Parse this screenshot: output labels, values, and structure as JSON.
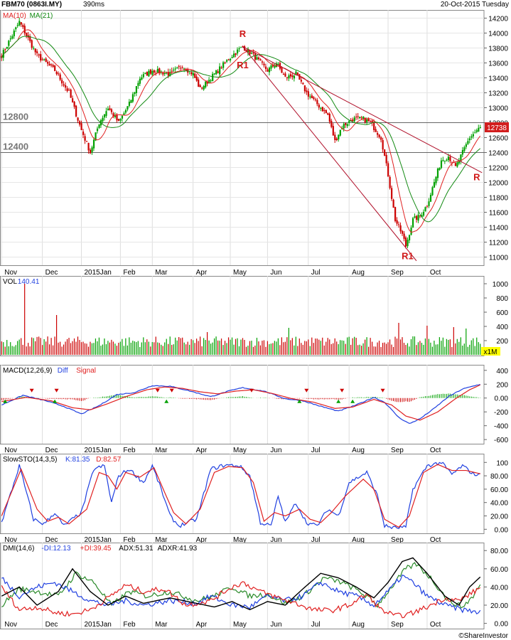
{
  "header": {
    "symbol": "FBM70 (0863I.MY)",
    "timing": "390ms",
    "date": "20-Oct-2015 Tuesday"
  },
  "footer": {
    "copyright": "©ShareInvestor"
  },
  "colors": {
    "up": "#00a000",
    "down": "#cc0000",
    "ma10": "#e02020",
    "ma21": "#138a13",
    "diff": "#1f3fe0",
    "signal": "#e02020",
    "trend": "#b0102a",
    "adx": "#000000",
    "minus_di": "#1f3fe0",
    "plus_di": "#e02020",
    "adxr": "#2a8a2a",
    "last_price_box": "#d21d1d",
    "volume_unit_box": "#ffff00"
  },
  "chart_data": [
    {
      "type": "candlestick",
      "panel": "price",
      "legend": [
        "MA(10)",
        "MA(21)"
      ],
      "x_ticks": [
        "Nov",
        "Dec",
        "2015Jan",
        "Feb",
        "Mar",
        "Apr",
        "May",
        "Jun",
        "Jul",
        "Aug",
        "Sep",
        "Oct"
      ],
      "ylim": [
        10900,
        14300
      ],
      "y_ticks": [
        11000,
        11200,
        11400,
        11600,
        11800,
        12000,
        12200,
        12400,
        12600,
        12800,
        13000,
        13200,
        13400,
        13600,
        13800,
        14000,
        14200
      ],
      "reference_lines": [
        {
          "label": "12800",
          "value": 12800
        },
        {
          "label": "12400",
          "value": 12400
        }
      ],
      "last_price": "12738",
      "close_anchors": [
        [
          0,
          13700
        ],
        [
          10,
          14150
        ],
        [
          20,
          13700
        ],
        [
          30,
          13500
        ],
        [
          38,
          13200
        ],
        [
          45,
          12700
        ],
        [
          50,
          12400
        ],
        [
          55,
          12800
        ],
        [
          60,
          13000
        ],
        [
          66,
          12800
        ],
        [
          72,
          13050
        ],
        [
          78,
          13400
        ],
        [
          85,
          13500
        ],
        [
          95,
          13450
        ],
        [
          102,
          13560
        ],
        [
          108,
          13450
        ],
        [
          112,
          13250
        ],
        [
          118,
          13400
        ],
        [
          124,
          13550
        ],
        [
          130,
          13700
        ],
        [
          136,
          13820
        ],
        [
          142,
          13700
        ],
        [
          146,
          13600
        ],
        [
          150,
          13500
        ],
        [
          155,
          13600
        ],
        [
          160,
          13400
        ],
        [
          166,
          13450
        ],
        [
          172,
          13200
        ],
        [
          178,
          13050
        ],
        [
          184,
          12900
        ],
        [
          188,
          12550
        ],
        [
          192,
          12750
        ],
        [
          198,
          12850
        ],
        [
          204,
          12850
        ],
        [
          208,
          12800
        ],
        [
          214,
          12600
        ],
        [
          218,
          12100
        ],
        [
          222,
          11500
        ],
        [
          226,
          11300
        ],
        [
          228,
          11150
        ],
        [
          232,
          11500
        ],
        [
          236,
          11550
        ],
        [
          240,
          11700
        ],
        [
          244,
          12000
        ],
        [
          248,
          12300
        ],
        [
          252,
          12350
        ],
        [
          256,
          12200
        ],
        [
          260,
          12400
        ],
        [
          264,
          12600
        ],
        [
          270,
          12738
        ]
      ],
      "annotations": [
        {
          "text": "R",
          "x": 136,
          "y": 13950
        },
        {
          "text": "R1",
          "x": 136,
          "y": 13530
        },
        {
          "text": "R",
          "x": 268,
          "y": 12030
        },
        {
          "text": "R1",
          "x": 229,
          "y": 10970
        }
      ],
      "trendlines": [
        {
          "from": [
            136,
            13820
          ],
          "to": [
            271,
            12130
          ]
        },
        {
          "from": [
            136,
            13820
          ],
          "to": [
            234,
            10950
          ]
        }
      ]
    },
    {
      "type": "bar",
      "panel": "volume",
      "title": "VOL",
      "last_value": "140.41",
      "unit": "x1M",
      "ylim": [
        0,
        1100
      ],
      "y_ticks": [
        200,
        400,
        600,
        800,
        1000
      ],
      "spikes": [
        [
          13,
          1000
        ],
        [
          31,
          560
        ],
        [
          116,
          320
        ],
        [
          162,
          380
        ],
        [
          224,
          450
        ],
        [
          240,
          410
        ],
        [
          255,
          390
        ],
        [
          262,
          370
        ]
      ]
    },
    {
      "type": "line",
      "panel": "macd",
      "title": "MACD(12,26,9)",
      "series": [
        {
          "name": "Diff"
        },
        {
          "name": "Signal"
        }
      ],
      "ylim": [
        -650,
        470
      ],
      "y_ticks": [
        400,
        200,
        0,
        -200,
        -400,
        -600
      ],
      "diff_anchors": [
        [
          0,
          -100
        ],
        [
          12,
          40
        ],
        [
          25,
          -40
        ],
        [
          35,
          -120
        ],
        [
          45,
          -230
        ],
        [
          55,
          -110
        ],
        [
          65,
          50
        ],
        [
          75,
          80
        ],
        [
          85,
          180
        ],
        [
          95,
          170
        ],
        [
          105,
          110
        ],
        [
          118,
          20
        ],
        [
          128,
          100
        ],
        [
          136,
          150
        ],
        [
          148,
          100
        ],
        [
          160,
          -10
        ],
        [
          170,
          -40
        ],
        [
          180,
          -120
        ],
        [
          190,
          -190
        ],
        [
          200,
          -100
        ],
        [
          210,
          10
        ],
        [
          216,
          -60
        ],
        [
          224,
          -280
        ],
        [
          230,
          -370
        ],
        [
          236,
          -300
        ],
        [
          244,
          -150
        ],
        [
          252,
          20
        ],
        [
          260,
          130
        ],
        [
          270,
          200
        ]
      ],
      "signal_anchors": [
        [
          0,
          -50
        ],
        [
          14,
          10
        ],
        [
          28,
          -40
        ],
        [
          40,
          -140
        ],
        [
          50,
          -170
        ],
        [
          60,
          -80
        ],
        [
          70,
          20
        ],
        [
          82,
          120
        ],
        [
          92,
          160
        ],
        [
          102,
          140
        ],
        [
          112,
          90
        ],
        [
          122,
          60
        ],
        [
          132,
          100
        ],
        [
          142,
          120
        ],
        [
          152,
          70
        ],
        [
          164,
          -10
        ],
        [
          176,
          -60
        ],
        [
          188,
          -150
        ],
        [
          198,
          -130
        ],
        [
          210,
          -20
        ],
        [
          220,
          -100
        ],
        [
          228,
          -260
        ],
        [
          236,
          -320
        ],
        [
          246,
          -200
        ],
        [
          256,
          -10
        ],
        [
          264,
          120
        ],
        [
          270,
          190
        ]
      ],
      "down_arrows": [
        17,
        31,
        88,
        96,
        141,
        172,
        192,
        215
      ],
      "up_arrows": [
        2,
        30,
        93,
        168,
        190,
        198
      ]
    },
    {
      "type": "line",
      "panel": "stochastic",
      "title": "SlowSTO(14,3,5)",
      "series": [
        {
          "name": "K:81.35"
        },
        {
          "name": "D:82.57"
        }
      ],
      "ylim": [
        -5,
        112
      ],
      "y_ticks": [
        100,
        80,
        60,
        40,
        20,
        0
      ],
      "k_anchors": [
        [
          0,
          10
        ],
        [
          10,
          95
        ],
        [
          18,
          15
        ],
        [
          24,
          8
        ],
        [
          30,
          25
        ],
        [
          35,
          5
        ],
        [
          45,
          25
        ],
        [
          52,
          90
        ],
        [
          58,
          95
        ],
        [
          62,
          40
        ],
        [
          66,
          80
        ],
        [
          72,
          90
        ],
        [
          80,
          70
        ],
        [
          85,
          95
        ],
        [
          90,
          60
        ],
        [
          95,
          20
        ],
        [
          100,
          5
        ],
        [
          110,
          15
        ],
        [
          118,
          90
        ],
        [
          126,
          96
        ],
        [
          134,
          95
        ],
        [
          140,
          80
        ],
        [
          146,
          10
        ],
        [
          152,
          5
        ],
        [
          156,
          50
        ],
        [
          160,
          10
        ],
        [
          166,
          40
        ],
        [
          172,
          10
        ],
        [
          178,
          5
        ],
        [
          184,
          30
        ],
        [
          190,
          20
        ],
        [
          196,
          70
        ],
        [
          206,
          85
        ],
        [
          212,
          50
        ],
        [
          216,
          5
        ],
        [
          222,
          2
        ],
        [
          228,
          3
        ],
        [
          232,
          60
        ],
        [
          240,
          95
        ],
        [
          248,
          100
        ],
        [
          254,
          82
        ],
        [
          260,
          95
        ],
        [
          266,
          83
        ],
        [
          270,
          81
        ]
      ],
      "d_anchors": [
        [
          0,
          20
        ],
        [
          11,
          90
        ],
        [
          20,
          30
        ],
        [
          26,
          12
        ],
        [
          32,
          18
        ],
        [
          38,
          8
        ],
        [
          48,
          30
        ],
        [
          55,
          85
        ],
        [
          60,
          80
        ],
        [
          65,
          60
        ],
        [
          70,
          85
        ],
        [
          78,
          78
        ],
        [
          86,
          92
        ],
        [
          92,
          55
        ],
        [
          97,
          25
        ],
        [
          104,
          8
        ],
        [
          112,
          30
        ],
        [
          120,
          85
        ],
        [
          128,
          94
        ],
        [
          136,
          92
        ],
        [
          142,
          70
        ],
        [
          148,
          12
        ],
        [
          154,
          25
        ],
        [
          160,
          20
        ],
        [
          168,
          30
        ],
        [
          174,
          15
        ],
        [
          180,
          10
        ],
        [
          186,
          25
        ],
        [
          194,
          50
        ],
        [
          204,
          75
        ],
        [
          210,
          60
        ],
        [
          216,
          15
        ],
        [
          224,
          3
        ],
        [
          230,
          20
        ],
        [
          238,
          85
        ],
        [
          246,
          97
        ],
        [
          254,
          88
        ],
        [
          262,
          88
        ],
        [
          270,
          83
        ]
      ]
    },
    {
      "type": "line",
      "panel": "dmi",
      "title": "DMI(14,6)",
      "series": [
        {
          "name": "-DI:12.13"
        },
        {
          "name": "+DI:39.45"
        },
        {
          "name": "ADX:51.31"
        },
        {
          "name": "ADXR:41.93"
        }
      ],
      "ylim": [
        -5,
        88
      ],
      "y_ticks": [
        80,
        60,
        40,
        20,
        0
      ],
      "adx_anchors": [
        [
          0,
          30
        ],
        [
          10,
          40
        ],
        [
          20,
          20
        ],
        [
          32,
          35
        ],
        [
          40,
          60
        ],
        [
          50,
          35
        ],
        [
          60,
          20
        ],
        [
          70,
          30
        ],
        [
          80,
          22
        ],
        [
          95,
          28
        ],
        [
          110,
          22
        ],
        [
          120,
          18
        ],
        [
          130,
          24
        ],
        [
          140,
          15
        ],
        [
          150,
          24
        ],
        [
          160,
          20
        ],
        [
          170,
          38
        ],
        [
          180,
          55
        ],
        [
          190,
          50
        ],
        [
          200,
          40
        ],
        [
          210,
          28
        ],
        [
          218,
          45
        ],
        [
          226,
          68
        ],
        [
          232,
          72
        ],
        [
          240,
          55
        ],
        [
          250,
          30
        ],
        [
          258,
          20
        ],
        [
          264,
          40
        ],
        [
          270,
          51
        ]
      ],
      "minus_di_anchors": [
        [
          0,
          50
        ],
        [
          10,
          30
        ],
        [
          20,
          40
        ],
        [
          30,
          45
        ],
        [
          40,
          35
        ],
        [
          50,
          25
        ],
        [
          60,
          20
        ],
        [
          70,
          25
        ],
        [
          80,
          20
        ],
        [
          95,
          25
        ],
        [
          110,
          22
        ],
        [
          118,
          30
        ],
        [
          130,
          20
        ],
        [
          140,
          18
        ],
        [
          150,
          30
        ],
        [
          160,
          25
        ],
        [
          170,
          30
        ],
        [
          180,
          45
        ],
        [
          190,
          35
        ],
        [
          200,
          30
        ],
        [
          210,
          20
        ],
        [
          218,
          35
        ],
        [
          226,
          52
        ],
        [
          232,
          45
        ],
        [
          240,
          30
        ],
        [
          250,
          20
        ],
        [
          260,
          15
        ],
        [
          270,
          12
        ]
      ],
      "plus_di_anchors": [
        [
          0,
          40
        ],
        [
          10,
          15
        ],
        [
          20,
          18
        ],
        [
          30,
          12
        ],
        [
          40,
          10
        ],
        [
          50,
          15
        ],
        [
          60,
          28
        ],
        [
          70,
          42
        ],
        [
          80,
          35
        ],
        [
          92,
          38
        ],
        [
          104,
          20
        ],
        [
          118,
          25
        ],
        [
          128,
          38
        ],
        [
          136,
          45
        ],
        [
          146,
          35
        ],
        [
          156,
          28
        ],
        [
          166,
          22
        ],
        [
          176,
          15
        ],
        [
          186,
          14
        ],
        [
          196,
          20
        ],
        [
          206,
          32
        ],
        [
          214,
          15
        ],
        [
          222,
          8
        ],
        [
          230,
          10
        ],
        [
          240,
          18
        ],
        [
          250,
          28
        ],
        [
          258,
          25
        ],
        [
          264,
          32
        ],
        [
          270,
          39
        ]
      ],
      "adxr_anchors": [
        [
          0,
          20
        ],
        [
          10,
          38
        ],
        [
          20,
          35
        ],
        [
          32,
          30
        ],
        [
          42,
          55
        ],
        [
          52,
          45
        ],
        [
          62,
          20
        ],
        [
          72,
          35
        ],
        [
          82,
          30
        ],
        [
          95,
          35
        ],
        [
          110,
          25
        ],
        [
          120,
          30
        ],
        [
          130,
          40
        ],
        [
          140,
          30
        ],
        [
          150,
          32
        ],
        [
          160,
          22
        ],
        [
          170,
          30
        ],
        [
          182,
          50
        ],
        [
          192,
          45
        ],
        [
          202,
          35
        ],
        [
          212,
          20
        ],
        [
          220,
          40
        ],
        [
          228,
          60
        ],
        [
          234,
          65
        ],
        [
          242,
          50
        ],
        [
          252,
          25
        ],
        [
          260,
          18
        ],
        [
          266,
          30
        ],
        [
          270,
          42
        ]
      ]
    }
  ]
}
